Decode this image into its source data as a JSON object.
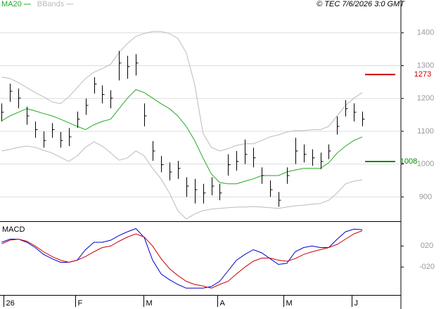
{
  "chart_data": [
    {
      "type": "ohlc",
      "credit": "© TEC 7/6/2026 3:0 GMT",
      "xlim": [
        -0.2,
        47.6
      ],
      "ylim": [
        826,
        1500
      ],
      "yticks": [
        900,
        1000,
        1100,
        1200,
        1300,
        1400
      ],
      "grid": true,
      "bar_color": "#000000",
      "high": [
        1185,
        1245,
        1230,
        1175,
        1130,
        1100,
        1125,
        1098,
        1110,
        1160,
        1200,
        1265,
        1240,
        1225,
        1345,
        1330,
        1335,
        1185,
        1070,
        1025,
        1005,
        1010,
        960,
        955,
        940,
        960,
        940,
        1030,
        1040,
        1075,
        1050,
        990,
        950,
        915,
        990,
        1080,
        1060,
        1045,
        1035,
        1060,
        1145,
        1195,
        1185,
        1160
      ],
      "low": [
        1130,
        1190,
        1170,
        1120,
        1080,
        1050,
        1080,
        1050,
        1055,
        1110,
        1150,
        1215,
        1185,
        1170,
        1255,
        1260,
        1270,
        1115,
        1010,
        975,
        950,
        955,
        900,
        880,
        880,
        905,
        890,
        965,
        980,
        1000,
        990,
        940,
        900,
        870,
        940,
        1000,
        1005,
        995,
        985,
        1015,
        1090,
        1145,
        1130,
        1115
      ],
      "close": [
        1158,
        1222,
        1201,
        1147,
        1105,
        1072,
        1105,
        1072,
        1083,
        1137,
        1179,
        1244,
        1212,
        1201,
        1308,
        1297,
        1308,
        1147,
        1040,
        998,
        976,
        987,
        933,
        922,
        912,
        933,
        912,
        998,
        1008,
        1030,
        1019,
        965,
        922,
        890,
        965,
        1040,
        1030,
        1019,
        1008,
        1040,
        1115,
        1169,
        1158,
        1137
      ],
      "series": [
        {
          "name": "MA20",
          "color": "#22aa22",
          "values": [
            1132,
            1147,
            1158,
            1169,
            1162,
            1154,
            1147,
            1137,
            1126,
            1115,
            1105,
            1120,
            1130,
            1137,
            1169,
            1201,
            1227,
            1218,
            1201,
            1184,
            1169,
            1147,
            1115,
            1072,
            1019,
            970,
            944,
            940,
            940,
            948,
            955,
            965,
            965,
            965,
            976,
            982,
            987,
            987,
            987,
            1004,
            1034,
            1055,
            1072,
            1083
          ]
        },
        {
          "name": "BBands",
          "color": "#bbbbbb",
          "upper": [
            1265,
            1261,
            1248,
            1233,
            1218,
            1205,
            1190,
            1184,
            1205,
            1233,
            1261,
            1280,
            1291,
            1304,
            1340,
            1368,
            1389,
            1398,
            1404,
            1404,
            1398,
            1383,
            1340,
            1244,
            1094,
            1051,
            1040,
            1047,
            1057,
            1062,
            1062,
            1072,
            1083,
            1089,
            1098,
            1102,
            1102,
            1105,
            1105,
            1115,
            1147,
            1179,
            1201,
            1218
          ],
          "lower": [
            1040,
            1045,
            1051,
            1055,
            1051,
            1042,
            1034,
            1021,
            1008,
            1025,
            1051,
            1068,
            1055,
            1034,
            1012,
            1019,
            1040,
            1025,
            987,
            955,
            912,
            858,
            833,
            848,
            858,
            863,
            865,
            867,
            869,
            869,
            871,
            869,
            867,
            865,
            869,
            873,
            875,
            878,
            880,
            890,
            912,
            940,
            948,
            952
          ]
        }
      ],
      "levels": [
        {
          "value": 1273,
          "color": "#cc0000"
        },
        {
          "value": 1008,
          "color": "#008800"
        }
      ]
    },
    {
      "type": "macd",
      "title": "MACD",
      "xlim": [
        -0.2,
        47.6
      ],
      "ylim": [
        -73,
        63
      ],
      "yticks": [
        {
          "value": 20,
          "label": "020"
        },
        {
          "value": -20,
          "label": "-020"
        }
      ],
      "xticks": [
        {
          "value": 0.25,
          "label": "26"
        },
        {
          "value": 8.8,
          "label": "F"
        },
        {
          "value": 16.9,
          "label": "M"
        },
        {
          "value": 25.7,
          "label": "A"
        },
        {
          "value": 33.6,
          "label": "M"
        },
        {
          "value": 41.7,
          "label": "J"
        }
      ],
      "series": [
        {
          "color": "#0000cc",
          "values": [
            27,
            33,
            33,
            27,
            17,
            4,
            -4,
            -11,
            -11,
            -7,
            13,
            27,
            27,
            31,
            40,
            47,
            53,
            36,
            -7,
            -33,
            -44,
            -53,
            -60,
            -60,
            -60,
            -57,
            -47,
            -27,
            -7,
            4,
            13,
            7,
            -4,
            -15,
            -13,
            9,
            17,
            20,
            17,
            17,
            33,
            47,
            52,
            51
          ]
        },
        {
          "color": "#cc0000",
          "values": [
            24,
            31,
            33,
            29,
            20,
            9,
            0,
            -7,
            -11,
            -7,
            0,
            9,
            17,
            20,
            29,
            37,
            43,
            37,
            20,
            -4,
            -23,
            -36,
            -47,
            -53,
            -56,
            -60,
            -53,
            -47,
            -33,
            -20,
            -9,
            -3,
            -3,
            -7,
            -9,
            -4,
            4,
            9,
            13,
            17,
            23,
            33,
            43,
            49
          ]
        }
      ]
    }
  ]
}
